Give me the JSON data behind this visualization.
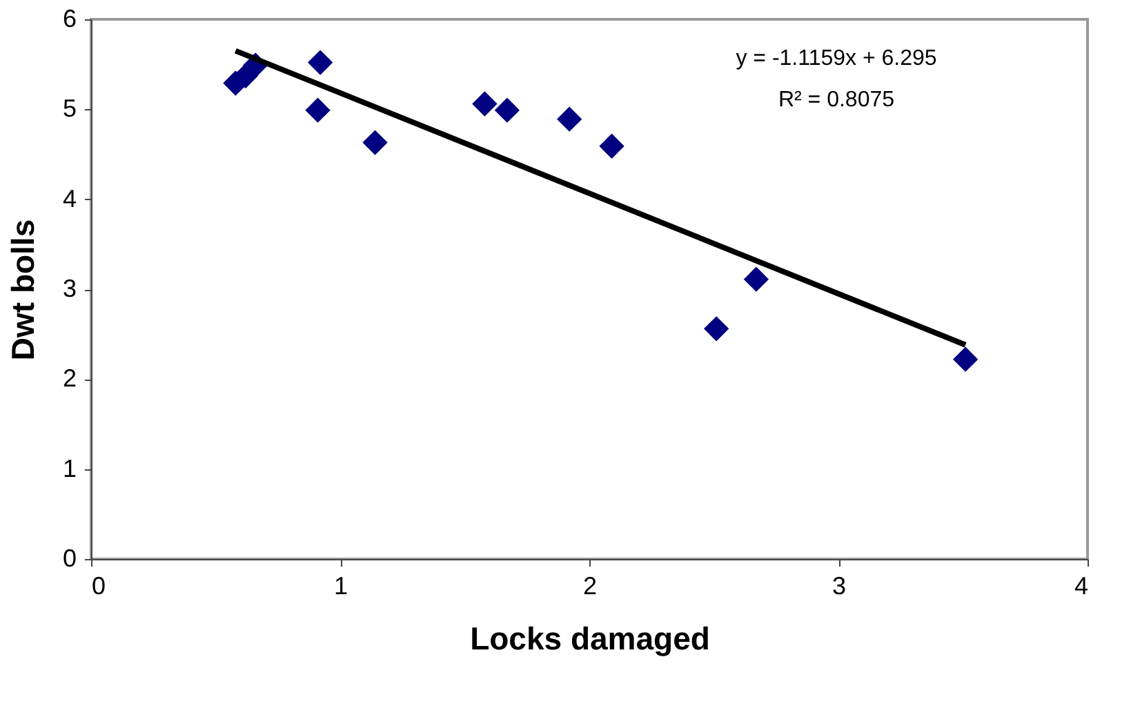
{
  "chart_data": {
    "type": "scatter",
    "xlabel": "Locks damaged",
    "ylabel": "Dwt bolls",
    "xlim": [
      0,
      4
    ],
    "xticks": [
      0,
      1,
      2,
      3,
      4
    ],
    "ylim": [
      0,
      6
    ],
    "yticks": [
      0,
      1,
      2,
      3,
      4,
      5,
      6
    ],
    "grid": false,
    "series": [
      {
        "marker": "diamond",
        "color": "#000080",
        "x": [
          0.58,
          0.62,
          0.66,
          0.92,
          0.91,
          1.14,
          1.58,
          1.67,
          1.92,
          2.09,
          2.67,
          2.51,
          3.51
        ],
        "values": [
          5.29,
          5.37,
          5.49,
          5.52,
          4.99,
          4.63,
          5.06,
          4.99,
          4.89,
          4.59,
          3.11,
          2.56,
          2.22
        ]
      },
      {
        "type": "line",
        "line_style": "solid",
        "color": "#000000",
        "x": [
          0.58,
          3.51
        ],
        "values": [
          5.65,
          2.38
        ]
      }
    ],
    "annotations": [
      "y = -1.1159x + 6.295",
      "R² = 0.8075"
    ]
  }
}
